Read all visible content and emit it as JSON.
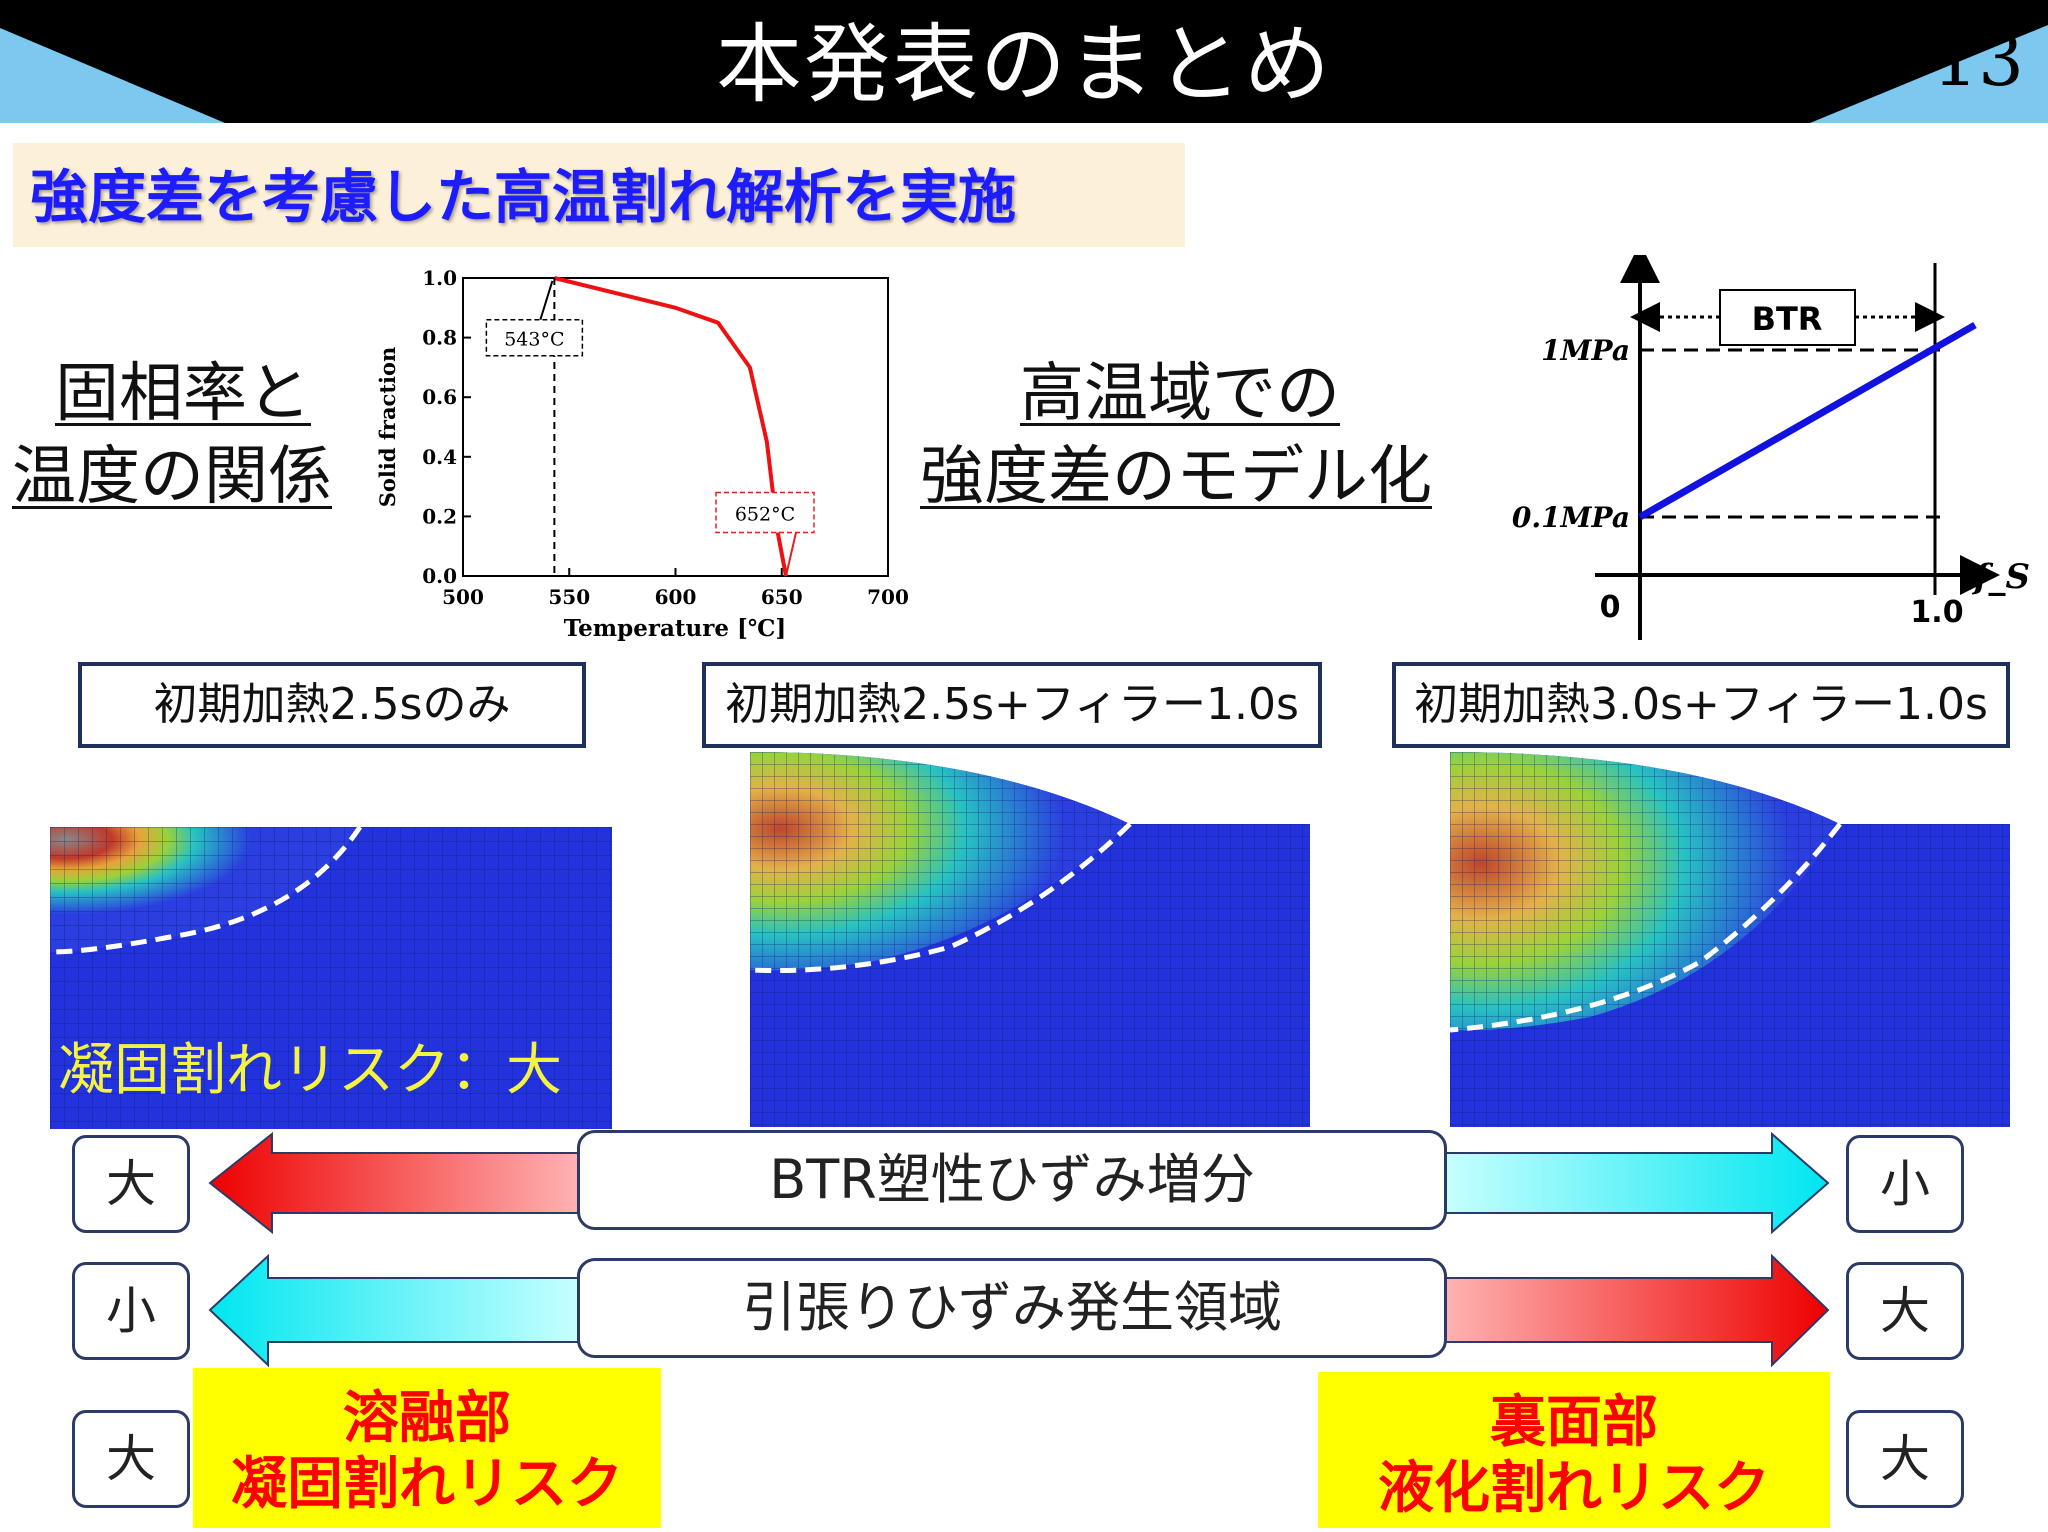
{
  "header": {
    "title": "本発表のまとめ",
    "page_number": "13"
  },
  "subtitle": "強度差を考慮した高温割れ解析を実施",
  "left_label": {
    "line1": "固相率と",
    "line2": "温度の関係"
  },
  "mid_label": {
    "line1": "高温域での",
    "line2": "強度差のモデル化"
  },
  "chart_data": [
    {
      "type": "line",
      "title": "",
      "xlabel": "Temperature [℃]",
      "ylabel": "Solid fraction",
      "xlim": [
        500,
        700
      ],
      "ylim": [
        0.0,
        1.0
      ],
      "xticks": [
        "500",
        "550",
        "600",
        "650",
        "700"
      ],
      "yticks": [
        "0.0",
        "0.2",
        "0.4",
        "0.6",
        "0.8",
        "1.0"
      ],
      "series": [
        {
          "name": "solid fraction",
          "x": [
            543,
            600,
            620,
            635,
            643,
            648,
            652
          ],
          "y": [
            1.0,
            0.9,
            0.85,
            0.7,
            0.45,
            0.15,
            0.0
          ]
        }
      ],
      "annotations": [
        {
          "text": "543°C",
          "x": 543,
          "y": 1.0
        },
        {
          "text": "652°C",
          "x": 652,
          "y": 0.0
        }
      ]
    },
    {
      "type": "line",
      "xlabel": "f_S",
      "ylabel": "",
      "x_ticks": [
        "0",
        "1.0"
      ],
      "y_ticks": [
        "0.1MPa",
        "1MPa"
      ],
      "band_label": "BTR",
      "series": [
        {
          "name": "strength",
          "x": [
            0,
            1.0
          ],
          "y": [
            "0.1MPa",
            "1MPa"
          ]
        }
      ]
    }
  ],
  "cases": [
    {
      "label": "初期加熱2.5sのみ"
    },
    {
      "label": "初期加熱2.5s+フィラー1.0s"
    },
    {
      "label": "初期加熱3.0s+フィラー1.0s"
    }
  ],
  "sim_risk_text": "凝固割れリスク：大",
  "bars": [
    {
      "label": "BTR塑性ひずみ増分",
      "left": "大",
      "right": "小"
    },
    {
      "label": "引張りひずみ発生領域",
      "left": "小",
      "right": "大"
    }
  ],
  "bottom": {
    "left_small": "大",
    "right_small": "大",
    "left_box": {
      "line1": "溶融部",
      "line2": "凝固割れリスク"
    },
    "right_box": {
      "line1": "裏面部",
      "line2": "液化割れリスク"
    }
  },
  "colors": {
    "header_bg": "#000000",
    "accent": "#7cc8ee",
    "subtitle": "#1c1cff"
  }
}
